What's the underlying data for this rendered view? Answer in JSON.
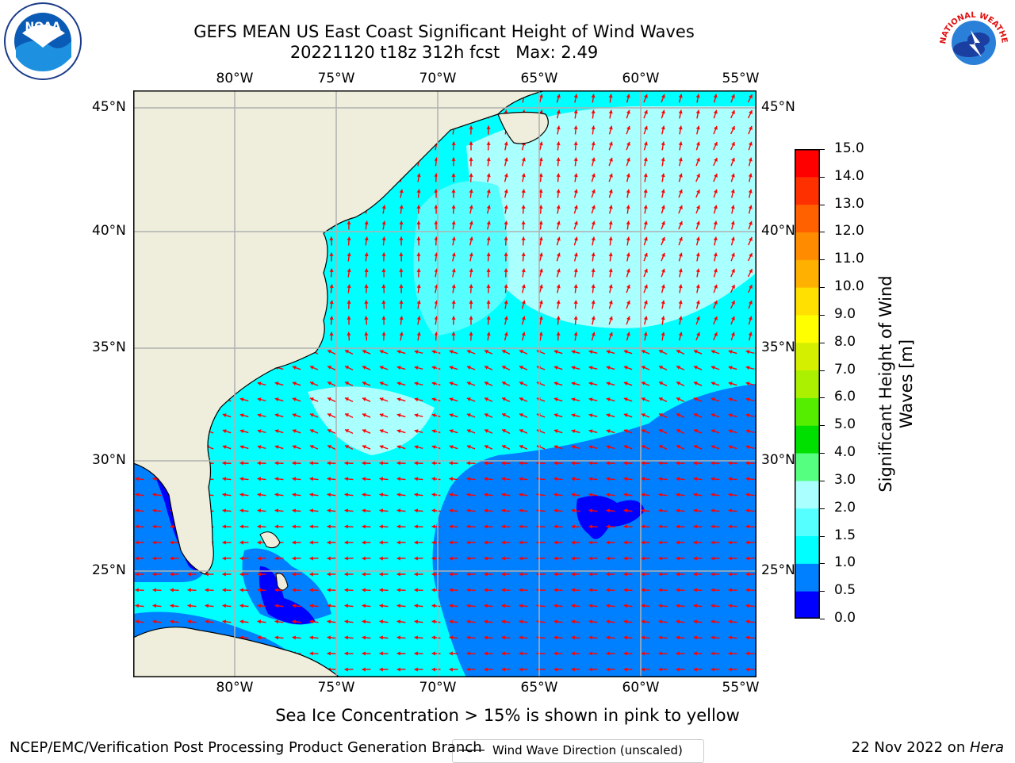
{
  "title": {
    "line1": "GEFS MEAN US East Coast Significant Height of Wind Waves",
    "line2": "20221120 t18z 312h fcst",
    "max": "Max: 2.49"
  },
  "logos": {
    "left": "NOAA",
    "right_text": "NATIONAL WEATHER SERVICE"
  },
  "axes": {
    "lon_labels": [
      "80°W",
      "75°W",
      "70°W",
      "65°W",
      "60°W",
      "55°W"
    ],
    "lat_labels": [
      "45°N",
      "40°N",
      "35°N",
      "30°N",
      "25°N"
    ]
  },
  "legend": {
    "label": "Wind Wave Direction (unscaled)"
  },
  "colorbar": {
    "label_line1": "Significant Height of Wind",
    "label_line2": "Waves [m]",
    "ticks": [
      "15.0",
      "14.0",
      "13.0",
      "12.0",
      "11.0",
      "10.0",
      "9.0",
      "8.0",
      "7.0",
      "6.0",
      "5.0",
      "4.0",
      "3.0",
      "2.0",
      "1.5",
      "1.0",
      "0.5",
      "0.0"
    ],
    "colors": [
      "#0000ff",
      "#0080ff",
      "#00ffff",
      "#55ffff",
      "#aaffff",
      "#55ff80",
      "#00e000",
      "#55ee00",
      "#aaf000",
      "#d4f000",
      "#ffff00",
      "#ffe000",
      "#ffb000",
      "#ff8c00",
      "#ff6000",
      "#ff3000",
      "#ff0000"
    ]
  },
  "notes": {
    "ice": "Sea Ice Concentration > 15% is shown in pink to yellow"
  },
  "footer": {
    "left": "NCEP/EMC/Verification Post Processing Product Generation Branch",
    "right_date": "22 Nov 2022 on ",
    "right_host": "Hera"
  },
  "map_colors": {
    "land": "#efeedc",
    "ocean_mid": "#00ffff",
    "ocean_low": "#0080ff",
    "ocean_vlow": "#0000ff",
    "ocean_high": "#aaffff",
    "arrow": "#ff0000",
    "grid": "#b0b0b0"
  }
}
